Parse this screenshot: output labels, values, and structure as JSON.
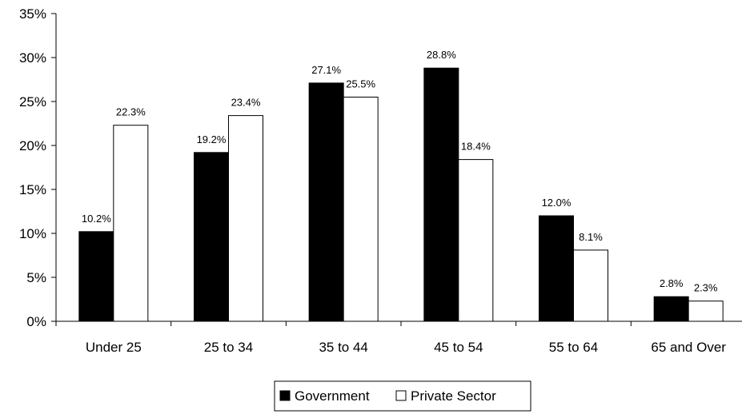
{
  "chart_data": {
    "type": "bar",
    "categories": [
      "Under 25",
      "25 to 34",
      "35 to 44",
      "45 to 54",
      "55 to 64",
      "65 and Over"
    ],
    "series": [
      {
        "name": "Government",
        "values": [
          10.2,
          19.2,
          27.1,
          28.8,
          12.0,
          2.8
        ],
        "labels": [
          "10.2%",
          "19.2%",
          "27.1%",
          "28.8%",
          "12.0%",
          "2.8%"
        ],
        "color": "#000000"
      },
      {
        "name": "Private Sector",
        "values": [
          22.3,
          23.4,
          25.5,
          18.4,
          8.1,
          2.3
        ],
        "labels": [
          "22.3%",
          "23.4%",
          "25.5%",
          "18.4%",
          "8.1%",
          "2.3%"
        ],
        "color": "#ffffff"
      }
    ],
    "ylim": [
      0,
      35
    ],
    "yticks": [
      0,
      5,
      10,
      15,
      20,
      25,
      30,
      35
    ],
    "ytick_labels": [
      "0%",
      "5%",
      "10%",
      "15%",
      "20%",
      "25%",
      "30%",
      "35%"
    ],
    "grid": false,
    "legend_position": "bottom",
    "title": "",
    "xlabel": "",
    "ylabel": ""
  }
}
